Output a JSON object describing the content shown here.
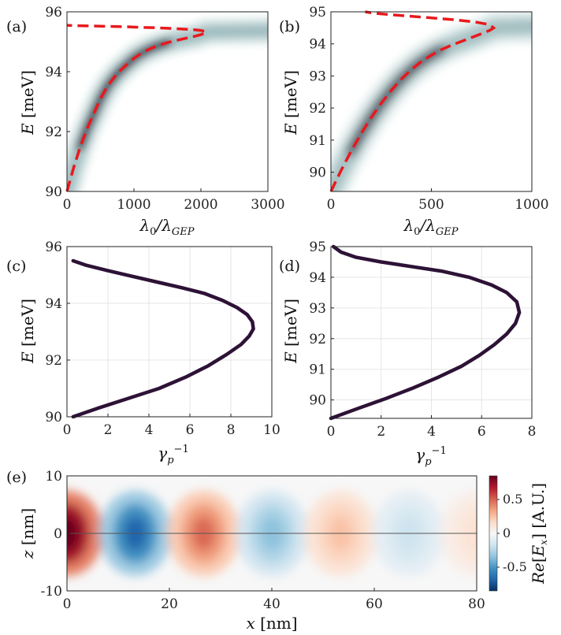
{
  "chart_data": [
    {
      "id": "a",
      "type": "heatmap",
      "panel_label": "(a)",
      "xlabel": "λ₀/λGEP",
      "xlabel_main": "λ",
      "xlabel_sub1": "0",
      "xlabel_mid": "/λ",
      "xlabel_sub2": "GEP",
      "ylabel": "E [meV]",
      "ylabel_var": "E",
      "ylabel_unit": " [meV]",
      "xlim": [
        0,
        3000
      ],
      "ylim": [
        90,
        96
      ],
      "xticks": [
        0,
        1000,
        2000,
        3000
      ],
      "yticks": [
        90,
        92,
        94,
        96
      ],
      "dispersion": {
        "x": [
          0,
          100,
          200,
          300,
          400,
          500,
          600,
          700,
          800,
          900,
          1000,
          1100,
          1200,
          1300,
          1400,
          1500,
          1600,
          1700,
          1800,
          1900,
          2000,
          2050,
          2080,
          2000,
          1900,
          1700,
          1500,
          1300,
          1100,
          900,
          700,
          500,
          300,
          100,
          0
        ],
        "y": [
          90.0,
          90.8,
          91.5,
          92.1,
          92.6,
          93.1,
          93.5,
          93.8,
          94.05,
          94.25,
          94.45,
          94.6,
          94.72,
          94.82,
          94.9,
          94.97,
          95.03,
          95.08,
          95.13,
          95.18,
          95.24,
          95.28,
          95.33,
          95.38,
          95.4,
          95.43,
          95.45,
          95.47,
          95.48,
          95.5,
          95.51,
          95.52,
          95.53,
          95.54,
          95.55
        ]
      },
      "line_color": "#e8191c",
      "line_style": "dashed"
    },
    {
      "id": "b",
      "type": "heatmap",
      "panel_label": "(b)",
      "xlabel": "λ₀/λGEP",
      "xlabel_main": "λ",
      "xlabel_sub1": "0",
      "xlabel_mid": "/λ",
      "xlabel_sub2": "GEP",
      "ylabel": "E [meV]",
      "ylabel_var": "E",
      "ylabel_unit": " [meV]",
      "xlim": [
        0,
        1000
      ],
      "ylim": [
        89.4,
        95
      ],
      "xticks": [
        0,
        500,
        1000
      ],
      "yticks": [
        90,
        91,
        92,
        93,
        94,
        95
      ],
      "dispersion": {
        "x": [
          0,
          50,
          100,
          150,
          200,
          250,
          300,
          350,
          400,
          450,
          500,
          550,
          600,
          650,
          700,
          750,
          790,
          810,
          790,
          720,
          620,
          520,
          420,
          320,
          220,
          170
        ],
        "y": [
          89.4,
          90.05,
          90.65,
          91.2,
          91.7,
          92.15,
          92.55,
          92.9,
          93.2,
          93.45,
          93.65,
          93.82,
          93.96,
          94.08,
          94.2,
          94.32,
          94.42,
          94.5,
          94.6,
          94.68,
          94.75,
          94.8,
          94.85,
          94.9,
          94.95,
          95.0
        ]
      },
      "line_color": "#e8191c",
      "line_style": "dashed"
    },
    {
      "id": "c",
      "type": "line",
      "panel_label": "(c)",
      "xlabel": "γp⁻¹",
      "xlabel_var": "γ",
      "xlabel_sub": "p",
      "xlabel_sup": "−1",
      "ylabel": "E [meV]",
      "ylabel_var": "E",
      "ylabel_unit": " [meV]",
      "xlim": [
        0,
        10
      ],
      "ylim": [
        90,
        96
      ],
      "xticks": [
        0,
        2,
        4,
        6,
        8,
        10
      ],
      "yticks": [
        90,
        92,
        94,
        96
      ],
      "series": [
        {
          "x": [
            0.3,
            1.5,
            3.0,
            4.5,
            5.8,
            6.9,
            7.8,
            8.5,
            8.9,
            9.1,
            9.05,
            8.8,
            8.3,
            7.6,
            6.7,
            5.6,
            4.4,
            3.2,
            2.0,
            0.9,
            0.3
          ],
          "y": [
            90.0,
            90.3,
            90.65,
            91.0,
            91.4,
            91.8,
            92.2,
            92.55,
            92.85,
            93.1,
            93.35,
            93.6,
            93.85,
            94.1,
            94.35,
            94.55,
            94.75,
            94.95,
            95.15,
            95.35,
            95.5
          ]
        }
      ],
      "line_color": "#2d1236"
    },
    {
      "id": "d",
      "type": "line",
      "panel_label": "(d)",
      "xlabel": "γp⁻¹",
      "xlabel_var": "γ",
      "xlabel_sub": "p",
      "xlabel_sup": "−1",
      "ylabel": "E [meV]",
      "ylabel_var": "E",
      "ylabel_unit": " [meV]",
      "xlim": [
        0,
        8
      ],
      "ylim": [
        89.4,
        95
      ],
      "xticks": [
        0,
        2,
        4,
        6,
        8
      ],
      "yticks": [
        90,
        91,
        92,
        93,
        94,
        95
      ],
      "series": [
        {
          "x": [
            0.0,
            1.0,
            2.2,
            3.3,
            4.3,
            5.2,
            5.9,
            6.5,
            7.0,
            7.35,
            7.5,
            7.4,
            7.0,
            6.4,
            5.5,
            4.4,
            3.2,
            2.0,
            1.0,
            0.4,
            0.1
          ],
          "y": [
            89.4,
            89.7,
            90.05,
            90.4,
            90.75,
            91.1,
            91.45,
            91.8,
            92.15,
            92.5,
            92.85,
            93.2,
            93.5,
            93.75,
            94.0,
            94.2,
            94.35,
            94.5,
            94.65,
            94.82,
            95.0
          ]
        }
      ],
      "line_color": "#2d1236"
    },
    {
      "id": "e",
      "type": "heatmap",
      "panel_label": "(e)",
      "xlabel": "x [nm]",
      "xlabel_var": "x",
      "xlabel_unit": " [nm]",
      "ylabel": "z [nm]",
      "ylabel_var": "z",
      "ylabel_unit": " [nm]",
      "xlim": [
        0,
        80
      ],
      "ylim": [
        -10,
        10
      ],
      "xticks": [
        0,
        20,
        40,
        60,
        80
      ],
      "yticks": [
        -10,
        0,
        10
      ],
      "field": {
        "wavelength_nm": 26.7,
        "decay_length_nm": 40,
        "vertical_decay_nm": 5.5
      },
      "colorbar": {
        "label": "Re[Ex] [A.U.]",
        "label_re": "Re",
        "label_open": "[",
        "label_var": "E",
        "label_sub": "x",
        "label_close": "] [A.U.]",
        "ticks": [
          0.5,
          0,
          -0.5
        ],
        "tick_labels": [
          "0.5",
          "0",
          "-0.5"
        ],
        "range": [
          -0.85,
          0.85
        ],
        "colors": [
          "#053061",
          "#2166ac",
          "#4393c3",
          "#92c5de",
          "#d1e5f0",
          "#f7f7f7",
          "#fddbc7",
          "#f4a582",
          "#d6604d",
          "#b2182b",
          "#67001f"
        ]
      }
    }
  ]
}
